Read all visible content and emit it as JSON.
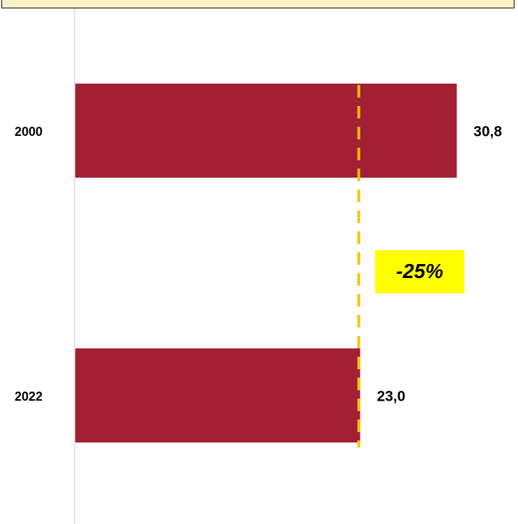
{
  "title": "",
  "colors": {
    "bar": "#a31f34",
    "reference_line": "#ffc000",
    "badge_background": "#ffff00",
    "title_background": "#fdf0c6"
  },
  "chart_data": {
    "type": "bar",
    "orientation": "horizontal",
    "categories": [
      "2000",
      "2022"
    ],
    "values": [
      30.8,
      23.0
    ],
    "value_labels": [
      "30,8",
      "23,0"
    ],
    "reference_value": 23.0,
    "change_label": "-25%",
    "xlim": [
      0,
      34
    ],
    "grid": false,
    "legend": "none"
  }
}
